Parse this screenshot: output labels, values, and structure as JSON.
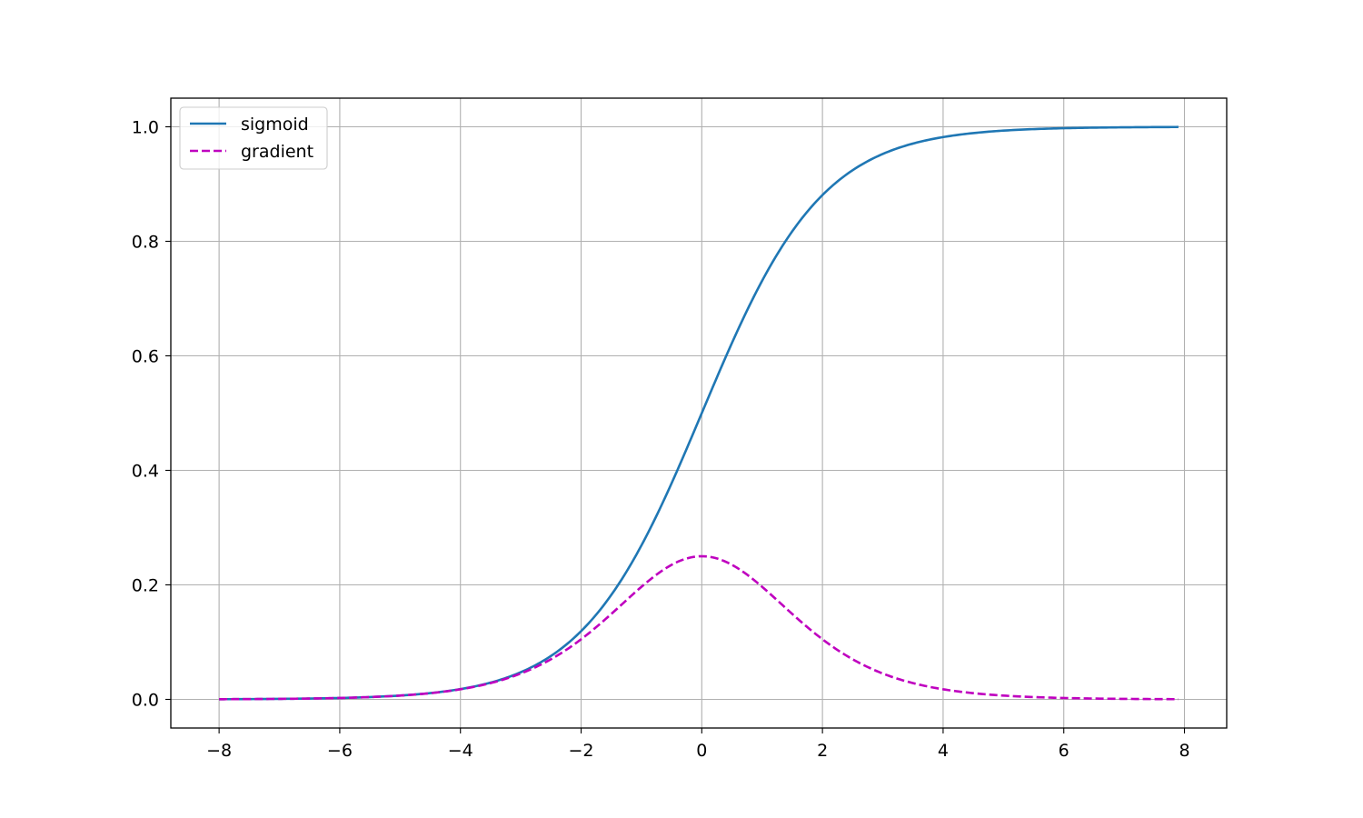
{
  "chart_data": {
    "type": "line",
    "title": "",
    "xlabel": "",
    "ylabel": "",
    "xlim": [
      -8.8,
      8.7
    ],
    "ylim": [
      -0.05,
      1.05
    ],
    "x_ticks": [
      -8,
      -6,
      -4,
      -2,
      0,
      2,
      4,
      6,
      8
    ],
    "x_tick_labels": [
      "−8",
      "−6",
      "−4",
      "−2",
      "0",
      "2",
      "4",
      "6",
      "8"
    ],
    "y_ticks": [
      0.0,
      0.2,
      0.4,
      0.6,
      0.8,
      1.0
    ],
    "y_tick_labels": [
      "0.0",
      "0.2",
      "0.4",
      "0.6",
      "0.8",
      "1.0"
    ],
    "grid": true,
    "legend_position": "top-left",
    "x_range": [
      -8,
      7.9
    ],
    "series": [
      {
        "name": "sigmoid",
        "function": "sigmoid",
        "color": "#1f77b4",
        "line_style": "solid",
        "x": [
          -8,
          -7,
          -6,
          -5,
          -4,
          -3,
          -2,
          -1.5,
          -1,
          -0.5,
          0,
          0.5,
          1,
          1.5,
          2,
          3,
          4,
          5,
          6,
          7,
          7.9
        ],
        "values": [
          0.0003,
          0.0009,
          0.0025,
          0.0067,
          0.018,
          0.0474,
          0.1192,
          0.1824,
          0.2689,
          0.3775,
          0.5,
          0.6225,
          0.7311,
          0.8176,
          0.8808,
          0.9526,
          0.982,
          0.9933,
          0.9975,
          0.9991,
          0.9996
        ]
      },
      {
        "name": "gradient",
        "function": "sigmoid_gradient",
        "color": "#bf00bf",
        "line_style": "dashed",
        "x": [
          -8,
          -7,
          -6,
          -5,
          -4,
          -3,
          -2,
          -1.5,
          -1,
          -0.5,
          0,
          0.5,
          1,
          1.5,
          2,
          3,
          4,
          5,
          6,
          7,
          7.9
        ],
        "values": [
          0.0003,
          0.0009,
          0.0025,
          0.0066,
          0.0177,
          0.0452,
          0.105,
          0.1491,
          0.1966,
          0.235,
          0.25,
          0.235,
          0.1966,
          0.1491,
          0.105,
          0.0452,
          0.0177,
          0.0066,
          0.0025,
          0.0009,
          0.0004
        ]
      }
    ]
  }
}
